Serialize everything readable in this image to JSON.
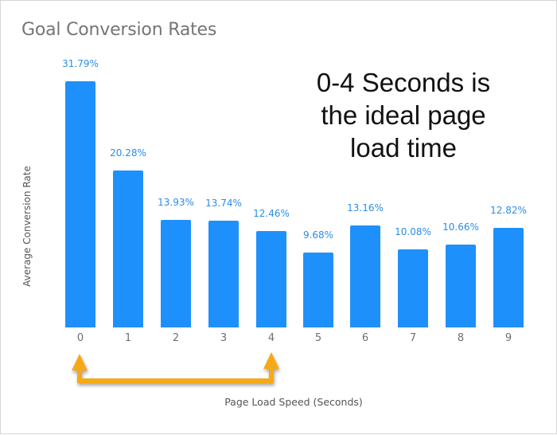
{
  "chart_data": {
    "type": "bar",
    "title": "Goal Conversion Rates",
    "xlabel": "Page Load Speed (Seconds)",
    "ylabel": "Average Conversion Rate",
    "categories": [
      "0",
      "1",
      "2",
      "3",
      "4",
      "5",
      "6",
      "7",
      "8",
      "9"
    ],
    "values": [
      31.79,
      20.28,
      13.93,
      13.74,
      12.46,
      9.68,
      13.16,
      10.08,
      10.66,
      12.82
    ],
    "value_labels": [
      "31.79%",
      "20.28%",
      "13.93%",
      "13.74%",
      "12.46%",
      "9.68%",
      "13.16%",
      "10.08%",
      "10.66%",
      "12.82%"
    ],
    "ylim": [
      0,
      35
    ],
    "grid": false,
    "legend": null,
    "bar_color": "#1e90fb",
    "annotations": [
      {
        "text": "0-4 Seconds is the ideal page load time",
        "lines": [
          "0-4 Seconds is",
          "the ideal page",
          "load time"
        ]
      },
      {
        "type": "bracket-arrow",
        "from": "0",
        "to": "4",
        "color": "#f5a914"
      }
    ]
  },
  "annotation_color": "#f5a914"
}
